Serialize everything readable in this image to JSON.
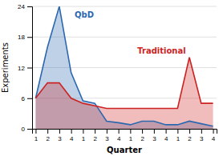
{
  "chart_data": {
    "type": "area",
    "xlabel": "Quarter",
    "ylabel": "Experiments",
    "categories": [
      "1",
      "2",
      "3",
      "4",
      "1",
      "2",
      "3",
      "4",
      "1",
      "2",
      "3",
      "4",
      "1",
      "2",
      "3",
      "4"
    ],
    "series": [
      {
        "name": "QbD",
        "color": "#2c68b0",
        "values": [
          6,
          16,
          24,
          11,
          5.5,
          5.0,
          1.5,
          1.2,
          0.8,
          1.5,
          1.5,
          0.8,
          0.8,
          1.5,
          1.0,
          0.5
        ]
      },
      {
        "name": "Traditional",
        "color": "#cc2222",
        "values": [
          6,
          9,
          9,
          6,
          5.0,
          4.5,
          4.0,
          4.0,
          4.0,
          4.0,
          4.0,
          4.0,
          4.0,
          14,
          5.0,
          5.0
        ]
      }
    ],
    "ylim": [
      0,
      24
    ],
    "yticks": [
      0,
      6,
      12,
      18,
      24
    ],
    "grid": true
  }
}
